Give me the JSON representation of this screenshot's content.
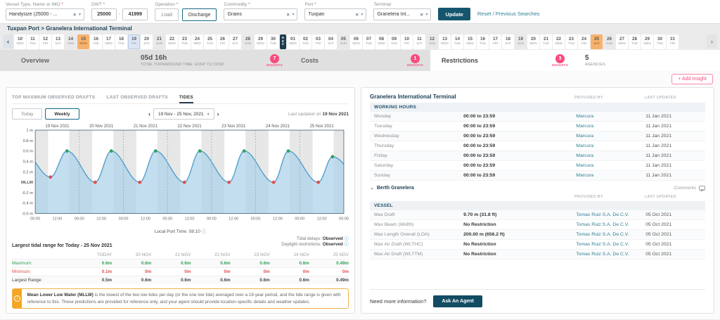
{
  "icons": {
    "close": "✕",
    "caret": "▾",
    "chev_left": "‹",
    "chev_right": "›",
    "info": "i",
    "collapse": "⌄",
    "dash": "-"
  },
  "filters": {
    "vessel": {
      "label": "Vessel Type, Name or IMO",
      "required": "*",
      "value": "Handysize (25000 - ..."
    },
    "dwt": {
      "label": "DWT",
      "required": "*",
      "min": "25000",
      "max": "41999",
      "separator": "-"
    },
    "operation": {
      "label": "Operation",
      "required": "*",
      "load": "Load",
      "discharge": "Discharge"
    },
    "commodity": {
      "label": "Commodity",
      "required": "*",
      "value": "Grains"
    },
    "port": {
      "label": "Port",
      "required": "*",
      "value": "Tuxpan"
    },
    "terminal": {
      "label": "Terminal",
      "required": "",
      "value": "Granelera Int..."
    },
    "update_label": "Update",
    "reset_label": "Reset / Previous Searches"
  },
  "breadcrumb": "Tuxpan Port > Granelera International Terminal",
  "datebar": {
    "days": [
      {
        "d": "10",
        "w": "WED",
        "t": ""
      },
      {
        "d": "11",
        "w": "THU",
        "t": ""
      },
      {
        "d": "12",
        "w": "FRI",
        "t": ""
      },
      {
        "d": "13",
        "w": "SAT",
        "t": ""
      },
      {
        "d": "14",
        "w": "SUN",
        "t": "sun"
      },
      {
        "d": "15",
        "w": "MON",
        "t": "hol"
      },
      {
        "d": "16",
        "w": "TUE",
        "t": ""
      },
      {
        "d": "17",
        "w": "WED",
        "t": ""
      },
      {
        "d": "18",
        "w": "THU",
        "t": ""
      },
      {
        "d": "19",
        "w": "FRI",
        "t": "sel"
      },
      {
        "d": "20",
        "w": "SAT",
        "t": ""
      },
      {
        "d": "21",
        "w": "SUN",
        "t": "sun"
      },
      {
        "d": "22",
        "w": "MON",
        "t": ""
      },
      {
        "d": "23",
        "w": "TUE",
        "t": ""
      },
      {
        "d": "24",
        "w": "WED",
        "t": ""
      },
      {
        "d": "25",
        "w": "THU",
        "t": ""
      },
      {
        "d": "26",
        "w": "FRI",
        "t": ""
      },
      {
        "d": "27",
        "w": "SAT",
        "t": ""
      },
      {
        "d": "28",
        "w": "SUN",
        "t": "sun"
      },
      {
        "d": "29",
        "w": "MON",
        "t": ""
      },
      {
        "d": "30",
        "w": "TUE",
        "t": ""
      },
      {
        "m": "DEC"
      },
      {
        "d": "01",
        "w": "WED",
        "t": ""
      },
      {
        "d": "02",
        "w": "THU",
        "t": ""
      },
      {
        "d": "03",
        "w": "FRI",
        "t": ""
      },
      {
        "d": "04",
        "w": "SAT",
        "t": ""
      },
      {
        "d": "05",
        "w": "SUN",
        "t": "sun"
      },
      {
        "d": "06",
        "w": "MON",
        "t": ""
      },
      {
        "d": "07",
        "w": "TUE",
        "t": ""
      },
      {
        "d": "08",
        "w": "WED",
        "t": ""
      },
      {
        "d": "09",
        "w": "THU",
        "t": ""
      },
      {
        "d": "10",
        "w": "FRI",
        "t": ""
      },
      {
        "d": "11",
        "w": "SAT",
        "t": ""
      },
      {
        "d": "12",
        "w": "SUN",
        "t": "sun"
      },
      {
        "d": "13",
        "w": "MON",
        "t": ""
      },
      {
        "d": "14",
        "w": "TUE",
        "t": ""
      },
      {
        "d": "15",
        "w": "WED",
        "t": ""
      },
      {
        "d": "16",
        "w": "THU",
        "t": ""
      },
      {
        "d": "17",
        "w": "FRI",
        "t": ""
      },
      {
        "d": "18",
        "w": "SAT",
        "t": ""
      },
      {
        "d": "19",
        "w": "SUN",
        "t": "sun"
      },
      {
        "d": "20",
        "w": "MON",
        "t": ""
      },
      {
        "d": "21",
        "w": "TUE",
        "t": ""
      },
      {
        "d": "22",
        "w": "WED",
        "t": ""
      },
      {
        "d": "23",
        "w": "THU",
        "t": ""
      },
      {
        "d": "24",
        "w": "FRI",
        "t": ""
      },
      {
        "d": "25",
        "w": "SAT",
        "t": "hol"
      },
      {
        "d": "26",
        "w": "SUN",
        "t": "sun"
      },
      {
        "d": "27",
        "w": "MON",
        "t": ""
      },
      {
        "d": "28",
        "w": "TUE",
        "t": ""
      },
      {
        "d": "29",
        "w": "WED",
        "t": ""
      },
      {
        "d": "30",
        "w": "THU",
        "t": ""
      },
      {
        "d": "31",
        "w": "FRI",
        "t": ""
      }
    ]
  },
  "tabs": {
    "insights_label": "INSIGHTS",
    "overview": {
      "label": "Overview",
      "stat_value": "05d 16h",
      "stat_label": "TOTAL TURNAROUND TIME: EOSP TO COSP",
      "insights": "7"
    },
    "costs": {
      "label": "Costs",
      "insights": "1"
    },
    "restrictions": {
      "label": "Restrictions",
      "insights": "3"
    },
    "agencies": {
      "value": "5",
      "label": "AGENCIES"
    }
  },
  "add_insight_label": "+ Add Insight",
  "tides_panel": {
    "tabs": {
      "t1": "TOP MAXIMUM OBSERVED DRAFTS",
      "t2": "LAST OBSERVED DRAFTS",
      "t3": "TIDES"
    },
    "toggle": {
      "today": "Today",
      "weekly": "Weekly"
    },
    "date_range": "19 Nov - 25 Nov, 2021",
    "last_updated_prefix": "Last updated on ",
    "last_updated_date": "19 Nov 2021",
    "local_time": "Local Port Time: 08:10",
    "tidal_delays_label": "Tidal delays: ",
    "tidal_delays_value": "Observed",
    "daylight_label": "Daylight restrictions: ",
    "daylight_value": "Observed",
    "range_title": "Largest tidal range for Today - 25 Nov 2021",
    "table": {
      "columns": [
        "TODAY",
        "20 NOV",
        "21 NOV",
        "22 NOV",
        "23 NOV",
        "24 NOV",
        "25 NOV"
      ],
      "rows": [
        {
          "label": "Maximum:",
          "type": "max",
          "values": [
            "0.6m",
            "0.6m",
            "0.6m",
            "0.6m",
            "0.6m",
            "0.6m",
            "0.49m"
          ]
        },
        {
          "label": "Minimum:",
          "type": "min",
          "values": [
            "0.1m",
            "0m",
            "0m",
            "0m",
            "0m",
            "0m",
            "0m"
          ]
        },
        {
          "label": "Largest Range:",
          "type": "range",
          "values": [
            "0.5m",
            "0.6m",
            "0.6m",
            "0.6m",
            "0.6m",
            "0.6m",
            "0.49m"
          ]
        }
      ]
    },
    "mllw_bold": "Mean Lower Low Water (MLLW)",
    "mllw_text": " is the lowest of the two low tides per day (or the one low tide) averaged over a 19-year period, and the tide range is given with reference to this. These predictions are provided for reference only, and your agent should provide location-specific details and weather updates."
  },
  "chart_data": {
    "type": "area",
    "title": "Tide levels 19 Nov - 25 Nov 2021 (m above MLLW)",
    "ylim": [
      -0.6,
      1
    ],
    "yticks": [
      {
        "v": 1,
        "label": "1 m"
      },
      {
        "v": 0.8,
        "label": "0.8 m"
      },
      {
        "v": 0.6,
        "label": "0.6 m"
      },
      {
        "v": 0.4,
        "label": "0.4 m"
      },
      {
        "v": 0.2,
        "label": "0.2 m"
      },
      {
        "v": 0,
        "label": "MLLW",
        "bold": true
      },
      {
        "v": -0.2,
        "label": "-0.2 m"
      },
      {
        "v": -0.4,
        "label": "-0.4 m"
      },
      {
        "v": -0.6,
        "label": "-0.6 m"
      }
    ],
    "x_tick_labels": [
      "00:00",
      "12:00"
    ],
    "final_tick_label": "00:00",
    "night_hours": [
      [
        0,
        7
      ],
      [
        18.5,
        24
      ]
    ],
    "lead_in": {
      "time": -6.8,
      "value": 0.6
    },
    "lead_out": {
      "time": 178.5,
      "value": 0
    },
    "days": [
      {
        "date": "19 Nov 2021",
        "low": {
          "time": 8.3,
          "value": 0.1
        },
        "high": {
          "time": 17.3,
          "value": 0.6
        }
      },
      {
        "date": "20 Nov 2021",
        "low": {
          "time": 8.6,
          "value": 0
        },
        "high": {
          "time": 17.4,
          "value": 0.6
        }
      },
      {
        "date": "21 Nov 2021",
        "low": {
          "time": 8.9,
          "value": 0
        },
        "high": {
          "time": 17.5,
          "value": 0.6
        }
      },
      {
        "date": "22 Nov 2021",
        "low": {
          "time": 9.2,
          "value": 0
        },
        "high": {
          "time": 17.6,
          "value": 0.6
        }
      },
      {
        "date": "23 Nov 2021",
        "low": {
          "time": 9.5,
          "value": 0
        },
        "high": {
          "time": 17.7,
          "value": 0.6
        }
      },
      {
        "date": "24 Nov 2021",
        "low": {
          "time": 9.8,
          "value": 0
        },
        "high": {
          "time": 17.8,
          "value": 0.6
        }
      },
      {
        "date": "25 Nov 2021",
        "low": {
          "time": 10.1,
          "value": 0
        },
        "high": {
          "time": 17.9,
          "value": 0.49
        }
      }
    ],
    "colors": {
      "line": "#4b9cca",
      "fill": "#aed3ea",
      "night": "#e7e7e7",
      "high_dot": "#2fa35c",
      "low_dot": "#e0504e"
    }
  },
  "restrictions_panel": {
    "title": "Granelera International Terminal",
    "col_provided": "PROVIDED BY",
    "col_updated": "LAST UPDATED",
    "working_hours_header": "WORKING HOURS",
    "working_hours_rows": [
      {
        "label": "Monday",
        "value": "00:00 to 23:59",
        "provider": "Marcura",
        "updated": "11 Jan 2021"
      },
      {
        "label": "Tuesday",
        "value": "00:00 to 23:59",
        "provider": "Marcura",
        "updated": "11 Jan 2021"
      },
      {
        "label": "Wednesday",
        "value": "00:00 to 23:59",
        "provider": "Marcura",
        "updated": "11 Jan 2021"
      },
      {
        "label": "Thursday",
        "value": "00:00 to 23:59",
        "provider": "Marcura",
        "updated": "11 Jan 2021"
      },
      {
        "label": "Friday",
        "value": "00:00 to 23:59",
        "provider": "Marcura",
        "updated": "11 Jan 2021"
      },
      {
        "label": "Saturday",
        "value": "00:00 to 23:59",
        "provider": "Marcura",
        "updated": "11 Jan 2021"
      },
      {
        "label": "Sunday",
        "value": "00:00 to 23:59",
        "provider": "Marcura",
        "updated": "11 Jan 2021"
      }
    ],
    "berth_label": "Berth Granelera",
    "comments_label": "Comments",
    "vessel_header": "VESSEL",
    "vessel_rows": [
      {
        "label": "Max Draft",
        "value": "9.70 m (31.8 ft)",
        "provider": "Tomas Ruiz S.A. De C.V.",
        "updated": "05 Oct 2021"
      },
      {
        "label": "Max Beam (Width)",
        "value": "No Restriction",
        "provider": "Tomas Ruiz S.A. De C.V.",
        "updated": "05 Oct 2021"
      },
      {
        "label": "Max Length Overall (LOA)",
        "value": "200.00 m (656.2 ft)",
        "provider": "Tomas Ruiz S.A. De C.V.",
        "updated": "05 Oct 2021"
      },
      {
        "label": "Max Air Draft (WLTHC)",
        "value": "No Restriction",
        "provider": "Tomas Ruiz S.A. De C.V.",
        "updated": "05 Oct 2021"
      },
      {
        "label": "Max Air Draft (WLTTM)",
        "value": "No Restriction",
        "provider": "Tomas Ruiz S.A. De C.V.",
        "updated": "05 Oct 2021"
      }
    ],
    "footer_text": "Need more information?",
    "footer_button": "Ask An Agent"
  }
}
